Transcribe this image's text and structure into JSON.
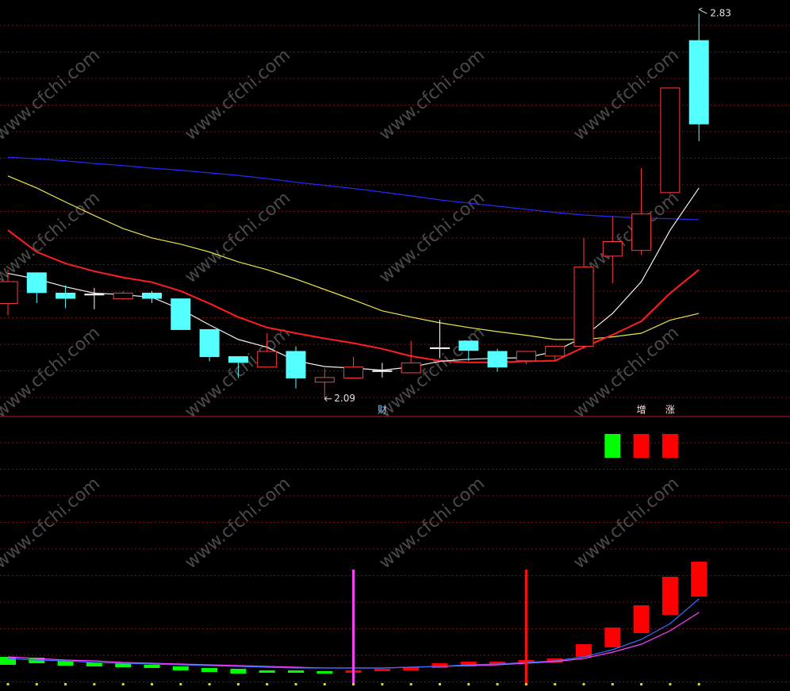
{
  "chart_data": [
    {
      "type": "candlestick",
      "ylim": [
        2.056,
        2.856
      ],
      "open": [
        2.273,
        2.332,
        2.293,
        2.291,
        2.282,
        2.293,
        2.282,
        2.223,
        2.171,
        2.151,
        2.181,
        2.122,
        2.13,
        2.144,
        2.14,
        2.188,
        2.201,
        2.181,
        2.163,
        2.172,
        2.191,
        2.364,
        2.375,
        2.486,
        2.778
      ],
      "high": [
        2.338,
        2.332,
        2.308,
        2.303,
        2.297,
        2.297,
        2.282,
        2.223,
        2.171,
        2.216,
        2.191,
        2.148,
        2.171,
        2.159,
        2.201,
        2.242,
        2.201,
        2.186,
        2.181,
        2.191,
        2.399,
        2.44,
        2.533,
        2.687,
        2.83
      ],
      "low": [
        2.251,
        2.274,
        2.264,
        2.262,
        2.28,
        2.274,
        2.223,
        2.162,
        2.13,
        2.151,
        2.11,
        2.09,
        2.13,
        2.131,
        2.14,
        2.168,
        2.163,
        2.142,
        2.156,
        2.162,
        2.186,
        2.312,
        2.366,
        2.483,
        2.585
      ],
      "close": [
        2.315,
        2.294,
        2.283,
        2.291,
        2.293,
        2.283,
        2.223,
        2.171,
        2.16,
        2.181,
        2.13,
        2.131,
        2.151,
        2.144,
        2.159,
        2.188,
        2.183,
        2.151,
        2.181,
        2.191,
        2.343,
        2.392,
        2.445,
        2.687,
        2.618
      ],
      "up_color": "#ff3c3c",
      "down_color": "#54ffff",
      "doji_color": "#ffffff",
      "series": [
        {
          "color": "#2828ff",
          "values": [
            2.554,
            2.551,
            2.547,
            2.542,
            2.538,
            2.533,
            2.529,
            2.524,
            2.519,
            2.513,
            2.506,
            2.5,
            2.494,
            2.487,
            2.48,
            2.472,
            2.466,
            2.46,
            2.454,
            2.448,
            2.443,
            2.44,
            2.437,
            2.436,
            2.434
          ]
        },
        {
          "color": "#e6e64a",
          "values": [
            2.518,
            2.495,
            2.468,
            2.442,
            2.417,
            2.399,
            2.387,
            2.372,
            2.353,
            2.338,
            2.32,
            2.3,
            2.28,
            2.259,
            2.247,
            2.236,
            2.227,
            2.219,
            2.212,
            2.204,
            2.204,
            2.209,
            2.216,
            2.241,
            2.254
          ]
        },
        {
          "color": "#ff1e1e",
          "values": [
            2.414,
            2.372,
            2.35,
            2.335,
            2.323,
            2.314,
            2.297,
            2.273,
            2.247,
            2.227,
            2.216,
            2.206,
            2.197,
            2.186,
            2.172,
            2.163,
            2.16,
            2.16,
            2.162,
            2.163,
            2.189,
            2.213,
            2.239,
            2.293,
            2.338
          ]
        },
        {
          "color": "#f0f0f0",
          "values": [
            2.331,
            2.32,
            2.305,
            2.293,
            2.29,
            2.285,
            2.262,
            2.232,
            2.204,
            2.189,
            2.163,
            2.152,
            2.149,
            2.145,
            2.151,
            2.162,
            2.166,
            2.168,
            2.169,
            2.181,
            2.209,
            2.254,
            2.315,
            2.414,
            2.495
          ]
        }
      ],
      "max_label": 2.83,
      "min_label": 2.09,
      "flags": [
        {
          "index": 13,
          "text": "财",
          "color": "#8ec8ff"
        },
        {
          "index": 22,
          "text": "增",
          "color": "#ffe0e0"
        },
        {
          "index": 23,
          "text": "涨",
          "color": "#ffe0e0"
        }
      ],
      "squares": [
        {
          "index": 21,
          "color": "#00ff00"
        },
        {
          "index": 22,
          "color": "#ff0000"
        },
        {
          "index": 23,
          "color": "#ff0000"
        }
      ],
      "watermark": "www.cfchi.com"
    },
    {
      "type": "indicator",
      "ylim": [
        0,
        160
      ],
      "bars_low": [
        22,
        24,
        21,
        20,
        19,
        18,
        15,
        13,
        11,
        12,
        12,
        11,
        12,
        14,
        15,
        18,
        20,
        22,
        24,
        25,
        32,
        44,
        62,
        85,
        108
      ],
      "bars_high": [
        32,
        31,
        27,
        25,
        24,
        22,
        20,
        18,
        17,
        15,
        15,
        14,
        15,
        17,
        19,
        24,
        26,
        26,
        28,
        30,
        48,
        69,
        97,
        133,
        152
      ],
      "bar_colors": [
        "#00ff00",
        "#00ff00",
        "#00ff00",
        "#00ff00",
        "#00ff00",
        "#00ff00",
        "#00ff00",
        "#00ff00",
        "#00ff00",
        "#00ff00",
        "#00ff00",
        "#00ff00",
        "#ff0000",
        "#ff0000",
        "#ff0000",
        "#ff0000",
        "#ff0000",
        "#ff0000",
        "#ff0000",
        "#ff0000",
        "#ff0000",
        "#ff0000",
        "#ff0000",
        "#ff0000",
        "#ff0000"
      ],
      "series": [
        {
          "color": "#ff40ff",
          "values": [
            32,
            30,
            28,
            27,
            25,
            24,
            23,
            22,
            21,
            20,
            19,
            18,
            18,
            18,
            19,
            20,
            21,
            22,
            24,
            26,
            30,
            38,
            48,
            65,
            88
          ]
        },
        {
          "color": "#3c6cff",
          "values": [
            30,
            28,
            27,
            25,
            24,
            23,
            22,
            21,
            20,
            19,
            18,
            18,
            18,
            18,
            19,
            20,
            22,
            23,
            25,
            27,
            32,
            41,
            54,
            74,
            105
          ]
        }
      ],
      "signals": [
        {
          "index": 12,
          "top": 142,
          "color": "#ff40ff"
        },
        {
          "index": 18,
          "top": 142,
          "color": "#ff1010"
        }
      ]
    }
  ]
}
